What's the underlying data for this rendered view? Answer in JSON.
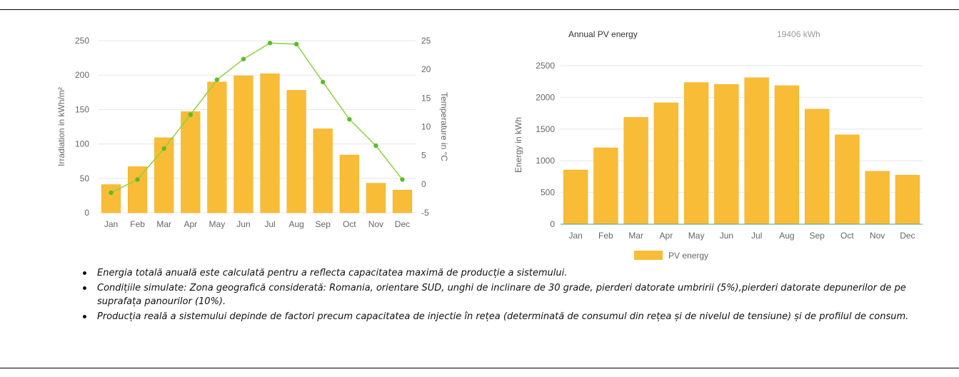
{
  "colors": {
    "bar_fill": "#F9BC37",
    "bar_stroke": "#F0AD1E",
    "line": "#8CD33C",
    "marker": "#5DBB2A",
    "axis_text": "#666666",
    "grid": "#E6E6E6",
    "baseline": "#3FA7A0"
  },
  "chart_data": [
    {
      "type": "bar",
      "title": "",
      "categories": [
        "Jan",
        "Feb",
        "Mar",
        "Apr",
        "May",
        "Jun",
        "Jul",
        "Aug",
        "Sep",
        "Oct",
        "Nov",
        "Dec"
      ],
      "ylabel": "Irradiation in kWh/m²",
      "y2label": "Temperature in °C",
      "ylim": [
        0,
        250
      ],
      "yticks": [
        0,
        50,
        100,
        150,
        200,
        250
      ],
      "y2lim": [
        -5,
        25
      ],
      "y2ticks": [
        -5,
        0,
        5,
        10,
        15,
        20,
        25
      ],
      "series": [
        {
          "type": "bar",
          "axis": "left",
          "values": [
            41,
            67,
            109,
            147,
            190,
            199,
            202,
            178,
            122,
            84,
            43,
            33
          ]
        },
        {
          "type": "line",
          "axis": "right",
          "values": [
            -1.5,
            0.8,
            6.2,
            12.1,
            18.2,
            21.8,
            24.6,
            24.4,
            17.8,
            11.3,
            6.7,
            0.8
          ]
        }
      ],
      "grid": true
    },
    {
      "type": "bar",
      "header_label": "Annual PV energy",
      "header_value": "19406 kWh",
      "categories": [
        "Jan",
        "Feb",
        "Mar",
        "Apr",
        "May",
        "Jun",
        "Jul",
        "Aug",
        "Sep",
        "Oct",
        "Nov",
        "Dec"
      ],
      "ylabel": "Energy in kWh",
      "ylim": [
        0,
        2500
      ],
      "yticks": [
        0,
        500,
        1000,
        1500,
        2000,
        2500
      ],
      "series": [
        {
          "name": "PV energy",
          "values": [
            855,
            1205,
            1685,
            1915,
            2235,
            2205,
            2310,
            2185,
            1815,
            1410,
            835,
            775
          ]
        }
      ],
      "legend": "bottom-center",
      "grid": true
    }
  ],
  "notes": [
    "Energia totală anuală este calculată pentru a reflecta capacitatea maximă de producție a sistemului.",
    "Condițiile simulate: Zona geografică considerată: Romania, orientare SUD, unghi de inclinare de 30 grade, pierderi datorate umbririi (5%),pierderi datorate depunerilor de pe suprafața panourilor (10%).",
    "Producția reală a sistemului depinde de factori precum capacitatea de injectie în rețea (determinată de consumul din rețea și de nivelul de tensiune) și de profilul de consum."
  ]
}
